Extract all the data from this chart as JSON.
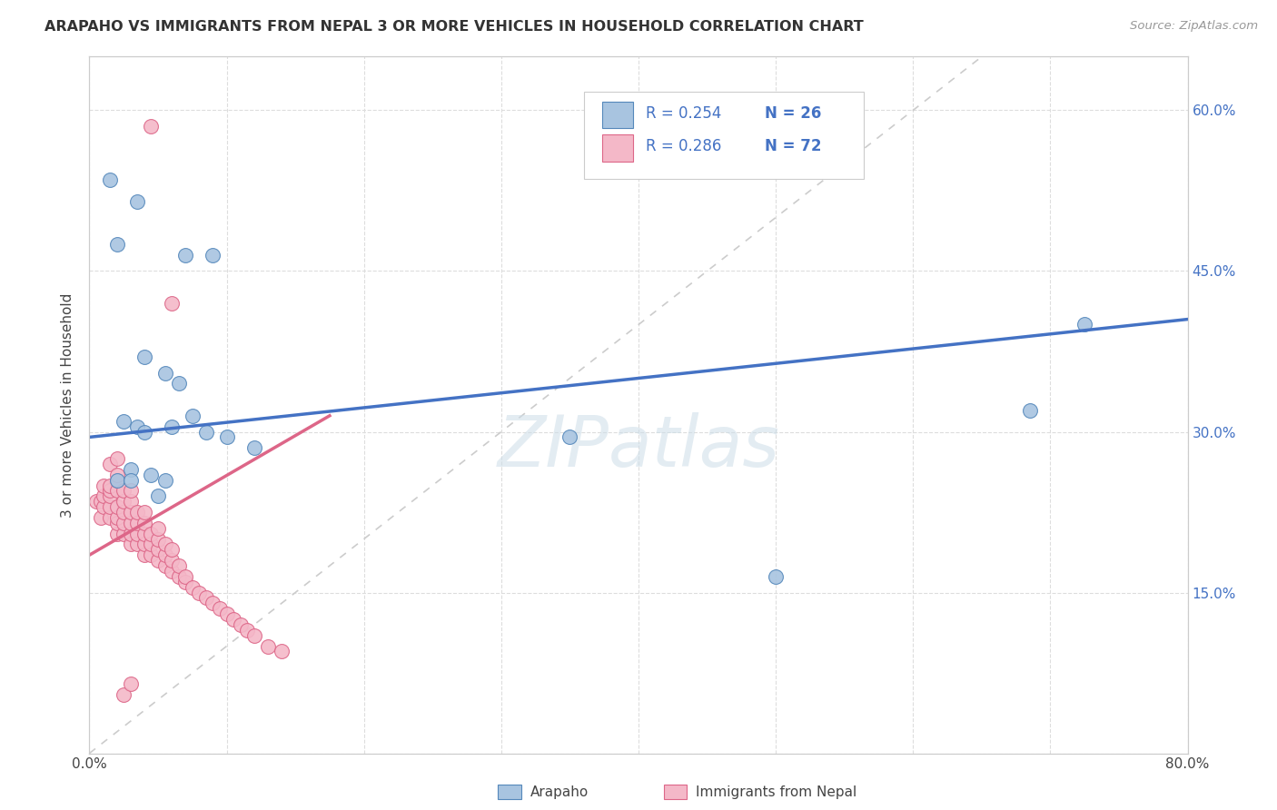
{
  "title": "ARAPAHO VS IMMIGRANTS FROM NEPAL 3 OR MORE VEHICLES IN HOUSEHOLD CORRELATION CHART",
  "source": "Source: ZipAtlas.com",
  "ylabel": "3 or more Vehicles in Household",
  "xlim": [
    0.0,
    0.8
  ],
  "ylim": [
    0.0,
    0.65
  ],
  "xticks": [
    0.0,
    0.1,
    0.2,
    0.3,
    0.4,
    0.5,
    0.6,
    0.7,
    0.8
  ],
  "xticklabels": [
    "0.0%",
    "",
    "",
    "",
    "",
    "",
    "",
    "",
    "80.0%"
  ],
  "yticks": [
    0.0,
    0.15,
    0.3,
    0.45,
    0.6
  ],
  "yticklabels_right": [
    "",
    "15.0%",
    "30.0%",
    "45.0%",
    "60.0%"
  ],
  "grid_color": "#dddddd",
  "background_color": "#ffffff",
  "watermark": "ZIPatlas",
  "arapaho_color": "#a8c4e0",
  "nepal_color": "#f4b8c8",
  "arapaho_edge": "#5588bb",
  "nepal_edge": "#dd6688",
  "line_blue": "#4472c4",
  "line_pink": "#dd6688",
  "line_dashed_color": "#cccccc",
  "blue_line_x0": 0.0,
  "blue_line_y0": 0.295,
  "blue_line_x1": 0.8,
  "blue_line_y1": 0.405,
  "pink_line_x0": 0.0,
  "pink_line_y0": 0.185,
  "pink_line_x1": 0.175,
  "pink_line_y1": 0.315,
  "arapaho_x": [
    0.015,
    0.035,
    0.02,
    0.07,
    0.09,
    0.04,
    0.055,
    0.065,
    0.025,
    0.035,
    0.04,
    0.06,
    0.075,
    0.085,
    0.1,
    0.12,
    0.35,
    0.5,
    0.685,
    0.725,
    0.02,
    0.03,
    0.05,
    0.03,
    0.045,
    0.055
  ],
  "arapaho_y": [
    0.535,
    0.515,
    0.475,
    0.465,
    0.465,
    0.37,
    0.355,
    0.345,
    0.31,
    0.305,
    0.3,
    0.305,
    0.315,
    0.3,
    0.295,
    0.285,
    0.295,
    0.165,
    0.32,
    0.4,
    0.255,
    0.265,
    0.24,
    0.255,
    0.26,
    0.255
  ],
  "nepal_x": [
    0.005,
    0.008,
    0.008,
    0.01,
    0.01,
    0.01,
    0.015,
    0.015,
    0.015,
    0.015,
    0.015,
    0.015,
    0.02,
    0.02,
    0.02,
    0.02,
    0.02,
    0.02,
    0.02,
    0.02,
    0.025,
    0.025,
    0.025,
    0.025,
    0.025,
    0.03,
    0.03,
    0.03,
    0.03,
    0.03,
    0.03,
    0.035,
    0.035,
    0.035,
    0.035,
    0.04,
    0.04,
    0.04,
    0.04,
    0.04,
    0.045,
    0.045,
    0.045,
    0.05,
    0.05,
    0.05,
    0.05,
    0.055,
    0.055,
    0.055,
    0.06,
    0.06,
    0.06,
    0.065,
    0.065,
    0.07,
    0.07,
    0.075,
    0.08,
    0.085,
    0.09,
    0.095,
    0.1,
    0.105,
    0.11,
    0.115,
    0.12,
    0.13,
    0.14,
    0.045,
    0.06,
    0.025,
    0.03
  ],
  "nepal_y": [
    0.235,
    0.235,
    0.22,
    0.23,
    0.24,
    0.25,
    0.22,
    0.23,
    0.24,
    0.245,
    0.25,
    0.27,
    0.205,
    0.215,
    0.22,
    0.23,
    0.245,
    0.255,
    0.26,
    0.275,
    0.205,
    0.215,
    0.225,
    0.235,
    0.245,
    0.195,
    0.205,
    0.215,
    0.225,
    0.235,
    0.245,
    0.195,
    0.205,
    0.215,
    0.225,
    0.185,
    0.195,
    0.205,
    0.215,
    0.225,
    0.185,
    0.195,
    0.205,
    0.18,
    0.19,
    0.2,
    0.21,
    0.175,
    0.185,
    0.195,
    0.17,
    0.18,
    0.19,
    0.165,
    0.175,
    0.16,
    0.165,
    0.155,
    0.15,
    0.145,
    0.14,
    0.135,
    0.13,
    0.125,
    0.12,
    0.115,
    0.11,
    0.1,
    0.095,
    0.585,
    0.42,
    0.055,
    0.065
  ]
}
